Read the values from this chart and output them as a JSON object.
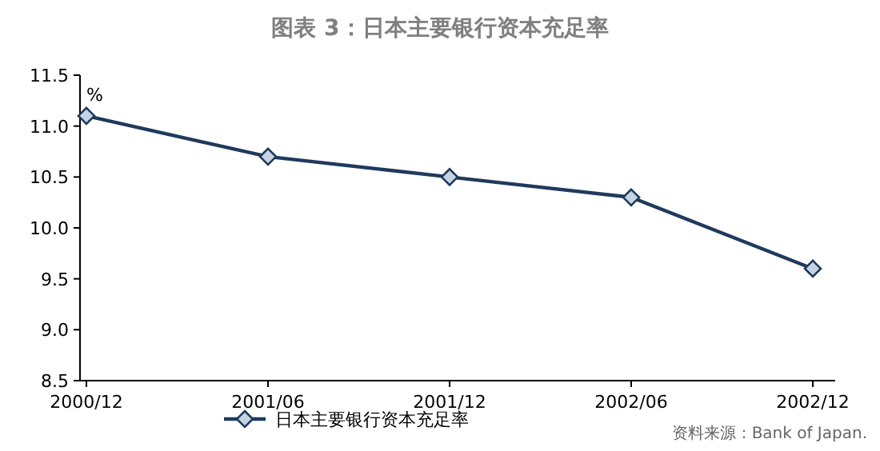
{
  "chart_data": {
    "type": "line",
    "title": "图表 3：日本主要银行资本充足率",
    "ylabel": "%",
    "categories": [
      "2000/12",
      "2001/06",
      "2001/12",
      "2002/06",
      "2002/12"
    ],
    "series": [
      {
        "name": "日本主要银行资本充足率",
        "color": "#1f3a5c",
        "values": [
          11.1,
          10.7,
          10.5,
          10.3,
          9.6
        ]
      }
    ],
    "ylim": [
      8.5,
      11.5
    ],
    "yticks": [
      {
        "value": 8.5,
        "label": "8.5"
      },
      {
        "value": 9,
        "label": "9.0"
      },
      {
        "value": 9.5,
        "label": "9.5"
      },
      {
        "value": 10,
        "label": "10.0"
      },
      {
        "value": 10.5,
        "label": "10.5"
      },
      {
        "value": 11,
        "label": "11.0"
      },
      {
        "value": 11.5,
        "label": "11.5"
      }
    ],
    "marker": "diamond",
    "legend": "bottom left",
    "annotations": [
      "资料来源：Bank of Japan."
    ]
  }
}
